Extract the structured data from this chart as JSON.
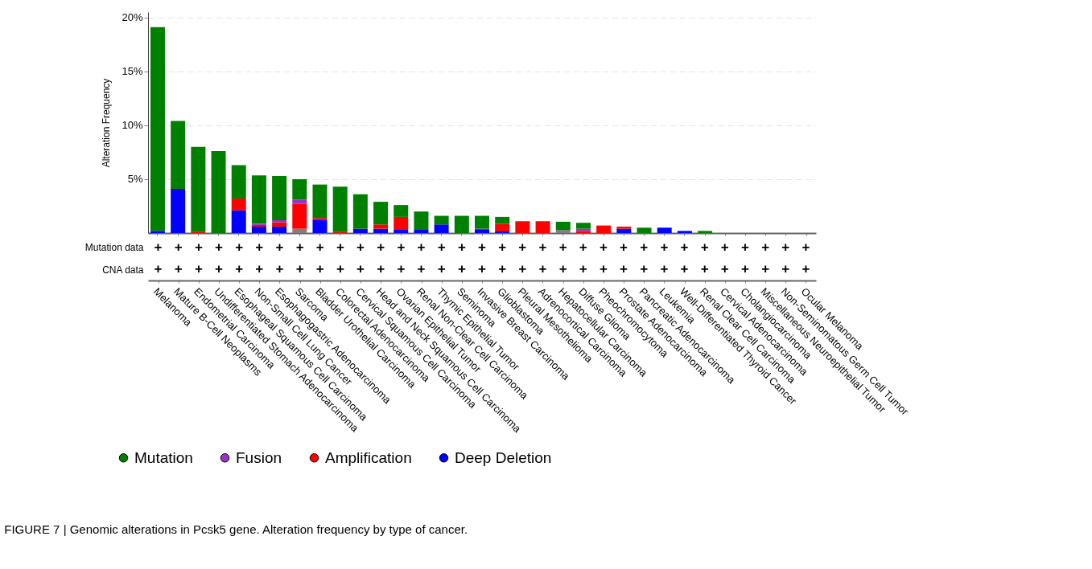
{
  "chart_data": [
    {
      "type": "bar",
      "stacked": true,
      "ylabel": "Alteration Frequency",
      "ylim": [
        0,
        20.5
      ],
      "yticks": [
        {
          "value": 5,
          "label": "5%"
        },
        {
          "value": 10,
          "label": "10%"
        },
        {
          "value": 15,
          "label": "15%"
        },
        {
          "value": 20,
          "label": "20%"
        }
      ],
      "grid": "y",
      "legend": "bottom",
      "categories": [
        "Melanoma",
        "Mature B-Cell Neoplasms",
        "Endometrial Carcinoma",
        "Undifferentiated Stomach Adenocarcinoma",
        "Esophageal Squamous Cell Carcinoma",
        "Non-Small Cell Lung Cancer",
        "Esophagogastric Adenocarcinoma",
        "Sarcoma",
        "Bladder Urothelial Carcinoma",
        "Colorectal Adenocarcinoma",
        "Cervical Squamous Cell Carcinoma",
        "Head and Neck Squamous Cell Carcinoma",
        "Ovarian Epithelial Tumor",
        "Renal Non-Clear Cell Carcinoma",
        "Thymic Epithelial Tumor",
        "Seminoma",
        "Invasive Breast Carcinoma",
        "Glioblastoma",
        "Pleural Mesothelioma",
        "Adrenocortical Carcinoma",
        "Hepatocellular Carcinoma",
        "Diffuse Glioma",
        "Pheochromocytoma",
        "Prostate Adenocarcinoma",
        "Pancreatic Adenocarcinoma",
        "Leukemia",
        "Well-Differentiated Thyroid Cancer",
        "Renal Clear Cell Carcinoma",
        "Cervical Adenocarcinoma",
        "Cholangiocarcinoma",
        "Miscellaneous Neuroepithelial Tumor",
        "Non-Seminomatous Germ Cell Tumor",
        "Ocular Melanoma"
      ],
      "series": [
        {
          "color": "#808080",
          "values": [
            0,
            0,
            0,
            0,
            0,
            0,
            0,
            0.4,
            0,
            0,
            0,
            0,
            0,
            0,
            0,
            0,
            0,
            0,
            0,
            0,
            0.3,
            0,
            0,
            0,
            0,
            0,
            0,
            0,
            0,
            0,
            0,
            0,
            0
          ]
        },
        {
          "name": "Deep Deletion",
          "color": "#0000ff",
          "values": [
            0.2,
            4.1,
            0,
            0,
            2.1,
            0.6,
            0.6,
            0,
            1.2,
            0,
            0.4,
            0.4,
            0.3,
            0.3,
            0.8,
            0,
            0.3,
            0.15,
            0,
            0,
            0,
            0,
            0,
            0.4,
            0,
            0.5,
            0.2,
            0,
            0,
            0,
            0,
            0,
            0
          ]
        },
        {
          "name": "Amplification",
          "color": "#ff0000",
          "values": [
            0,
            0,
            0.1,
            0,
            1.1,
            0.15,
            0.4,
            2.3,
            0.2,
            0.1,
            0,
            0.4,
            1.2,
            0,
            0,
            0,
            0.1,
            0.7,
            1.1,
            1.1,
            0,
            0.2,
            0.7,
            0.2,
            0,
            0,
            0,
            0,
            0,
            0,
            0,
            0,
            0
          ]
        },
        {
          "name": "Fusion",
          "color": "#9932cc",
          "values": [
            0,
            0,
            0,
            0,
            0,
            0.1,
            0.2,
            0.4,
            0,
            0,
            0,
            0,
            0,
            0,
            0,
            0,
            0,
            0,
            0,
            0,
            0,
            0.2,
            0,
            0,
            0,
            0,
            0,
            0,
            0,
            0,
            0,
            0,
            0
          ]
        },
        {
          "name": "Mutation",
          "color": "#008000",
          "values": [
            18.9,
            6.3,
            7.9,
            7.6,
            3.1,
            4.5,
            4.1,
            1.9,
            3.1,
            4.2,
            3.2,
            2.1,
            1.1,
            1.7,
            0.8,
            1.6,
            1.2,
            0.65,
            0,
            0,
            0.75,
            0.55,
            0,
            0,
            0.5,
            0,
            0,
            0.2,
            0,
            0,
            0,
            0,
            0
          ]
        }
      ],
      "annotations": [
        "FIGURE 7 | Genomic alterations in Pcsk5 gene. Alteration frequency by type of cancer."
      ]
    },
    {
      "type": "other",
      "y_categories": [
        "Mutation data",
        "CNA data"
      ],
      "cell_labels": [
        [
          "+",
          "+",
          "+",
          "+",
          "+",
          "+",
          "+",
          "+",
          "+",
          "+",
          "+",
          "+",
          "+",
          "+",
          "+",
          "+",
          "+",
          "+",
          "+",
          "+",
          "+",
          "+",
          "+",
          "+",
          "+",
          "+",
          "+",
          "+",
          "+",
          "+",
          "+",
          "+",
          "+"
        ],
        [
          "+",
          "+",
          "+",
          "+",
          "+",
          "+",
          "+",
          "+",
          "+",
          "+",
          "+",
          "+",
          "+",
          "+",
          "+",
          "+",
          "+",
          "+",
          "+",
          "+",
          "+",
          "+",
          "+",
          "+",
          "+",
          "+",
          "+",
          "+",
          "+",
          "+",
          "+",
          "+",
          "+"
        ]
      ]
    }
  ]
}
